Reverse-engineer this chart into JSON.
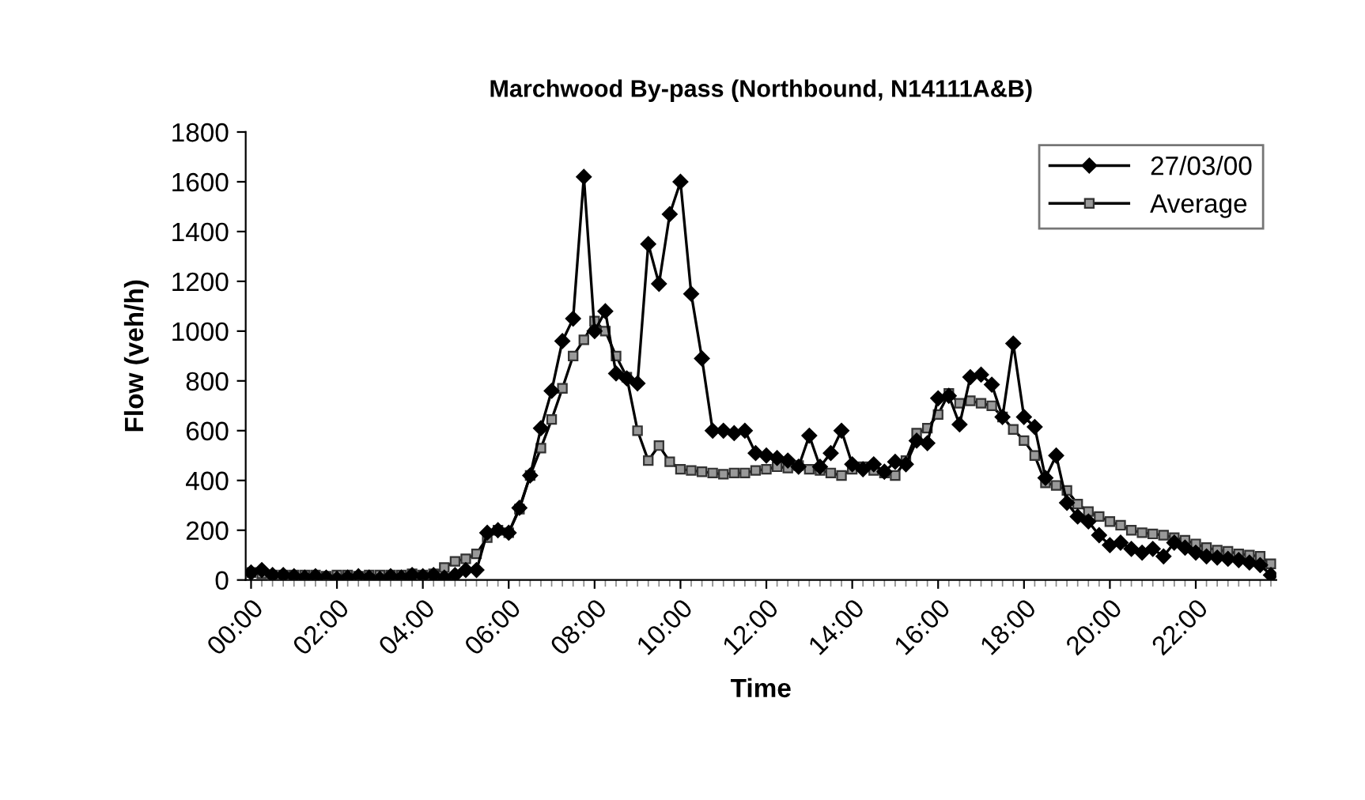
{
  "chart_data": {
    "type": "line",
    "title": "Marchwood By-pass (Northbound, N14111A&B)",
    "xlabel": "Time",
    "ylabel": "Flow (veh/h)",
    "x": [
      0,
      0.25,
      0.5,
      0.75,
      1,
      1.25,
      1.5,
      1.75,
      2,
      2.25,
      2.5,
      2.75,
      3,
      3.25,
      3.5,
      3.75,
      4,
      4.25,
      4.5,
      4.75,
      5,
      5.25,
      5.5,
      5.75,
      6,
      6.25,
      6.5,
      6.75,
      7,
      7.25,
      7.5,
      7.75,
      8,
      8.25,
      8.5,
      8.75,
      9,
      9.25,
      9.5,
      9.75,
      10,
      10.25,
      10.5,
      10.75,
      11,
      11.25,
      11.5,
      11.75,
      12,
      12.25,
      12.5,
      12.75,
      13,
      13.25,
      13.5,
      13.75,
      14,
      14.25,
      14.5,
      14.75,
      15,
      15.25,
      15.5,
      15.75,
      16,
      16.25,
      16.5,
      16.75,
      17,
      17.25,
      17.5,
      17.75,
      18,
      18.25,
      18.5,
      18.75,
      19,
      19.25,
      19.5,
      19.75,
      20,
      20.25,
      20.5,
      20.75,
      21,
      21.25,
      21.5,
      21.75,
      22,
      22.25,
      22.5,
      22.75,
      23,
      23.25,
      23.5,
      23.75
    ],
    "series": [
      {
        "name": "27/03/00",
        "color": "#000000",
        "marker": "diamond",
        "values": [
          30,
          40,
          20,
          20,
          15,
          10,
          15,
          10,
          5,
          10,
          15,
          10,
          5,
          15,
          10,
          20,
          15,
          20,
          10,
          20,
          40,
          40,
          190,
          200,
          190,
          290,
          420,
          610,
          760,
          960,
          1050,
          1620,
          1000,
          1080,
          830,
          810,
          790,
          1350,
          1190,
          1470,
          1600,
          1150,
          890,
          600,
          600,
          590,
          600,
          510,
          500,
          490,
          480,
          455,
          580,
          455,
          510,
          600,
          465,
          445,
          465,
          435,
          475,
          465,
          560,
          550,
          730,
          740,
          625,
          815,
          825,
          785,
          655,
          950,
          655,
          615,
          410,
          500,
          310,
          255,
          235,
          180,
          140,
          150,
          125,
          110,
          125,
          95,
          150,
          130,
          110,
          95,
          90,
          85,
          80,
          70,
          60,
          20
        ]
      },
      {
        "name": "Average",
        "color": "#999999",
        "marker": "square",
        "values": [
          30,
          25,
          20,
          20,
          20,
          20,
          20,
          15,
          20,
          20,
          15,
          20,
          20,
          20,
          20,
          25,
          20,
          25,
          50,
          75,
          85,
          105,
          170,
          200,
          190,
          285,
          420,
          530,
          645,
          770,
          900,
          965,
          1040,
          1000,
          900,
          815,
          600,
          480,
          540,
          475,
          445,
          440,
          435,
          430,
          425,
          430,
          430,
          440,
          445,
          455,
          450,
          460,
          445,
          440,
          430,
          420,
          445,
          455,
          440,
          430,
          420,
          480,
          590,
          610,
          665,
          750,
          710,
          720,
          710,
          700,
          655,
          605,
          560,
          500,
          390,
          380,
          360,
          305,
          275,
          255,
          235,
          220,
          200,
          190,
          185,
          180,
          170,
          160,
          145,
          130,
          120,
          115,
          105,
          100,
          95,
          65
        ]
      }
    ],
    "xlim": [
      -0.125,
      23.875
    ],
    "xticks": [
      {
        "value": 0,
        "label": "00:00"
      },
      {
        "value": 2,
        "label": "02:00"
      },
      {
        "value": 4,
        "label": "04:00"
      },
      {
        "value": 6,
        "label": "06:00"
      },
      {
        "value": 8,
        "label": "08:00"
      },
      {
        "value": 10,
        "label": "10:00"
      },
      {
        "value": 12,
        "label": "12:00"
      },
      {
        "value": 14,
        "label": "14:00"
      },
      {
        "value": 16,
        "label": "16:00"
      },
      {
        "value": 18,
        "label": "18:00"
      },
      {
        "value": 20,
        "label": "20:00"
      },
      {
        "value": 22,
        "label": "22:00"
      }
    ],
    "ylim": [
      0,
      1800
    ],
    "yticks": [
      0,
      200,
      400,
      600,
      800,
      1000,
      1200,
      1400,
      1600,
      1800
    ],
    "grid": false,
    "legend": "top right",
    "line_style": "solid"
  }
}
